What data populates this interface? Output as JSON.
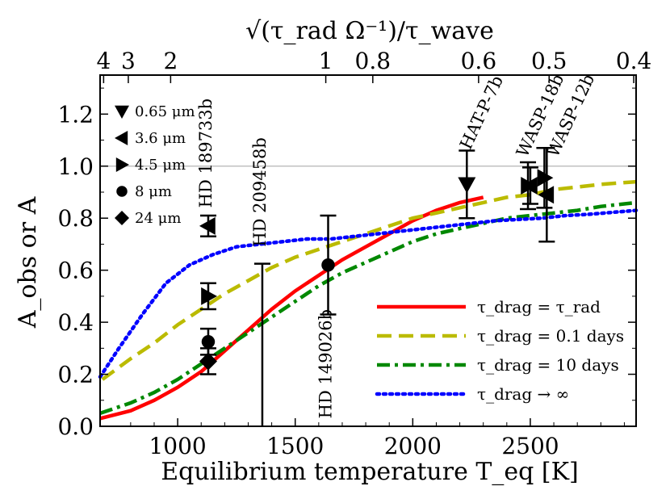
{
  "chart_data": {
    "type": "line",
    "xlabel": "Equilibrium temperature T_eq [K]",
    "ylabel": "A_obs or A",
    "top_axis_label": "√(τ_rad Ω⁻¹)/τ_wave",
    "xlim": [
      670,
      2950
    ],
    "ylim": [
      0.0,
      1.35
    ],
    "x_ticks": [
      1000,
      1500,
      2000,
      2500
    ],
    "y_ticks": [
      "0.0",
      "0.2",
      "0.4",
      "0.6",
      "0.8",
      "1.0",
      "1.2"
    ],
    "top_ticks": [
      {
        "label": "4",
        "teq": 685
      },
      {
        "label": "3",
        "teq": 790
      },
      {
        "label": "2",
        "teq": 970
      },
      {
        "label": "1",
        "teq": 1630
      },
      {
        "label": "0.8",
        "teq": 1830
      },
      {
        "label": "0.6",
        "teq": 2280
      },
      {
        "label": "0.5",
        "teq": 2580
      },
      {
        "label": "0.4",
        "teq": 2940
      }
    ],
    "reference_line": {
      "y": 1.0,
      "color": "#c0c0c0"
    },
    "series": [
      {
        "name": "τ_drag = τ_rad",
        "color": "#ff0000",
        "style": "solid",
        "x": [
          670,
          800,
          900,
          1000,
          1100,
          1200,
          1300,
          1400,
          1500,
          1600,
          1700,
          1800,
          1900,
          2000,
          2100,
          2200,
          2300
        ],
        "y": [
          0.03,
          0.06,
          0.1,
          0.15,
          0.21,
          0.29,
          0.37,
          0.45,
          0.52,
          0.58,
          0.64,
          0.69,
          0.74,
          0.79,
          0.83,
          0.86,
          0.88
        ]
      },
      {
        "name": "τ_drag = 0.1 days",
        "color": "#bbbb00",
        "style": "dashed",
        "x": [
          680,
          800,
          900,
          1000,
          1100,
          1200,
          1300,
          1400,
          1500,
          1600,
          1700,
          1800,
          1900,
          2000,
          2100,
          2200,
          2300,
          2400,
          2500,
          2600,
          2700,
          2800,
          2950
        ],
        "y": [
          0.18,
          0.26,
          0.32,
          0.39,
          0.45,
          0.51,
          0.56,
          0.61,
          0.65,
          0.68,
          0.71,
          0.74,
          0.77,
          0.8,
          0.82,
          0.84,
          0.86,
          0.88,
          0.89,
          0.91,
          0.92,
          0.93,
          0.94
        ]
      },
      {
        "name": "τ_drag = 10 days",
        "color": "#008800",
        "style": "dashdot",
        "x": [
          670,
          800,
          900,
          1000,
          1100,
          1200,
          1300,
          1400,
          1500,
          1600,
          1700,
          1800,
          1900,
          2000,
          2100,
          2200,
          2300,
          2400,
          2500,
          2600,
          2700,
          2800,
          2950
        ],
        "y": [
          0.05,
          0.09,
          0.13,
          0.18,
          0.24,
          0.3,
          0.36,
          0.42,
          0.48,
          0.54,
          0.59,
          0.63,
          0.67,
          0.71,
          0.74,
          0.76,
          0.78,
          0.8,
          0.81,
          0.82,
          0.83,
          0.845,
          0.86
        ]
      },
      {
        "name": "τ_drag → ∞",
        "color": "#0000ff",
        "style": "dotted",
        "x": [
          670,
          750,
          850,
          950,
          1050,
          1150,
          1250,
          1350,
          1450,
          1550,
          1650,
          1750,
          1850,
          1950,
          2050,
          2150,
          2250,
          2350,
          2450,
          2550,
          2650,
          2750,
          2950
        ],
        "y": [
          0.19,
          0.3,
          0.43,
          0.55,
          0.62,
          0.66,
          0.69,
          0.7,
          0.71,
          0.72,
          0.72,
          0.73,
          0.74,
          0.75,
          0.76,
          0.77,
          0.78,
          0.79,
          0.795,
          0.8,
          0.81,
          0.815,
          0.83
        ]
      }
    ],
    "observations": [
      {
        "marker": "diamond",
        "x": 1130,
        "y": 0.25,
        "err": 0.05
      },
      {
        "marker": "circle",
        "x": 1130,
        "y": 0.325,
        "err": 0.05
      },
      {
        "marker": "triangle-right",
        "x": 1130,
        "y": 0.5,
        "err": 0.05
      },
      {
        "marker": "triangle-left",
        "x": 1130,
        "y": 0.77,
        "err": 0.04
      },
      {
        "marker": "none",
        "x": 1360,
        "y": 0.0,
        "err_low": 0.0,
        "err_high": 0.625
      },
      {
        "marker": "circle",
        "x": 1640,
        "y": 0.62,
        "err_low": 0.19,
        "err_high": 0.19
      },
      {
        "marker": "triangle-down",
        "x": 2230,
        "y": 0.93,
        "err": 0.13
      },
      {
        "marker": "triangle-right",
        "x": 2490,
        "y": 0.925,
        "err": 0.09
      },
      {
        "marker": "triangle-left",
        "x": 2500,
        "y": 0.925,
        "err": 0.07
      },
      {
        "marker": "triangle-right",
        "x": 2560,
        "y": 0.955,
        "err": 0.115
      },
      {
        "marker": "triangle-left",
        "x": 2570,
        "y": 0.89,
        "err": 0.18
      }
    ],
    "planet_labels": [
      {
        "text": "HD 189733b",
        "x": 1130,
        "y": 0.84,
        "angle": -90
      },
      {
        "text": "HD 209458b",
        "x": 1360,
        "y": 0.69,
        "angle": -90
      },
      {
        "text": "HD 149026b",
        "x": 1640,
        "y": 0.03,
        "angle": -90
      },
      {
        "text": "HAT-P-7b",
        "x": 2230,
        "y": 1.06,
        "angle": -65
      },
      {
        "text": "WASP-18b",
        "x": 2470,
        "y": 1.03,
        "angle": -65
      },
      {
        "text": "WASP-12b",
        "x": 2600,
        "y": 1.03,
        "angle": -65
      }
    ],
    "marker_legend": [
      {
        "marker": "triangle-down",
        "label": "0.65 μm"
      },
      {
        "marker": "triangle-left",
        "label": "3.6 μm"
      },
      {
        "marker": "triangle-right",
        "label": "4.5 μm"
      },
      {
        "marker": "circle",
        "label": "8 μm"
      },
      {
        "marker": "diamond",
        "label": "24 μm"
      }
    ],
    "legend_position": "lower-right"
  }
}
